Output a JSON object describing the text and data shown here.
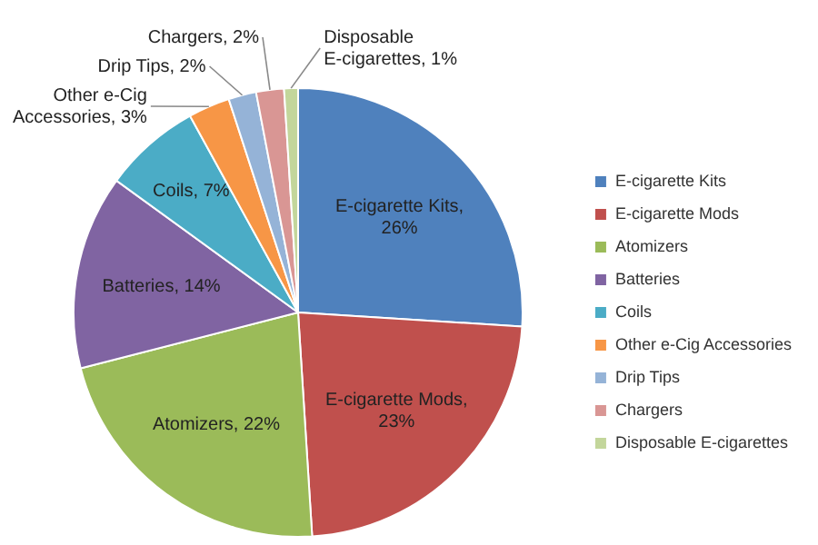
{
  "chart_data": {
    "type": "pie",
    "categories": [
      "E-cigarette Kits",
      "E-cigarette Mods",
      "Atomizers",
      "Batteries",
      "Coils",
      "Other e-Cig Accessories",
      "Drip Tips",
      "Chargers",
      "Disposable E-cigarettes"
    ],
    "values": [
      26,
      23,
      22,
      14,
      7,
      3,
      2,
      2,
      1
    ],
    "colors": [
      "#4f81bd",
      "#c0504d",
      "#9bbb59",
      "#8064a2",
      "#4bacc6",
      "#f79646",
      "#95b3d7",
      "#d99694",
      "#c3d69b"
    ],
    "value_labels": [
      "E-cigarette Kits, 26%",
      "E-cigarette Mods, 23%",
      "Atomizers, 22%",
      "Batteries, 14%",
      "Coils, 7%",
      "Other e-Cig Accessories, 3%",
      "Drip Tips, 2%",
      "Chargers, 2%",
      "Disposable E-cigarettes, 1%"
    ],
    "legend": "right"
  }
}
